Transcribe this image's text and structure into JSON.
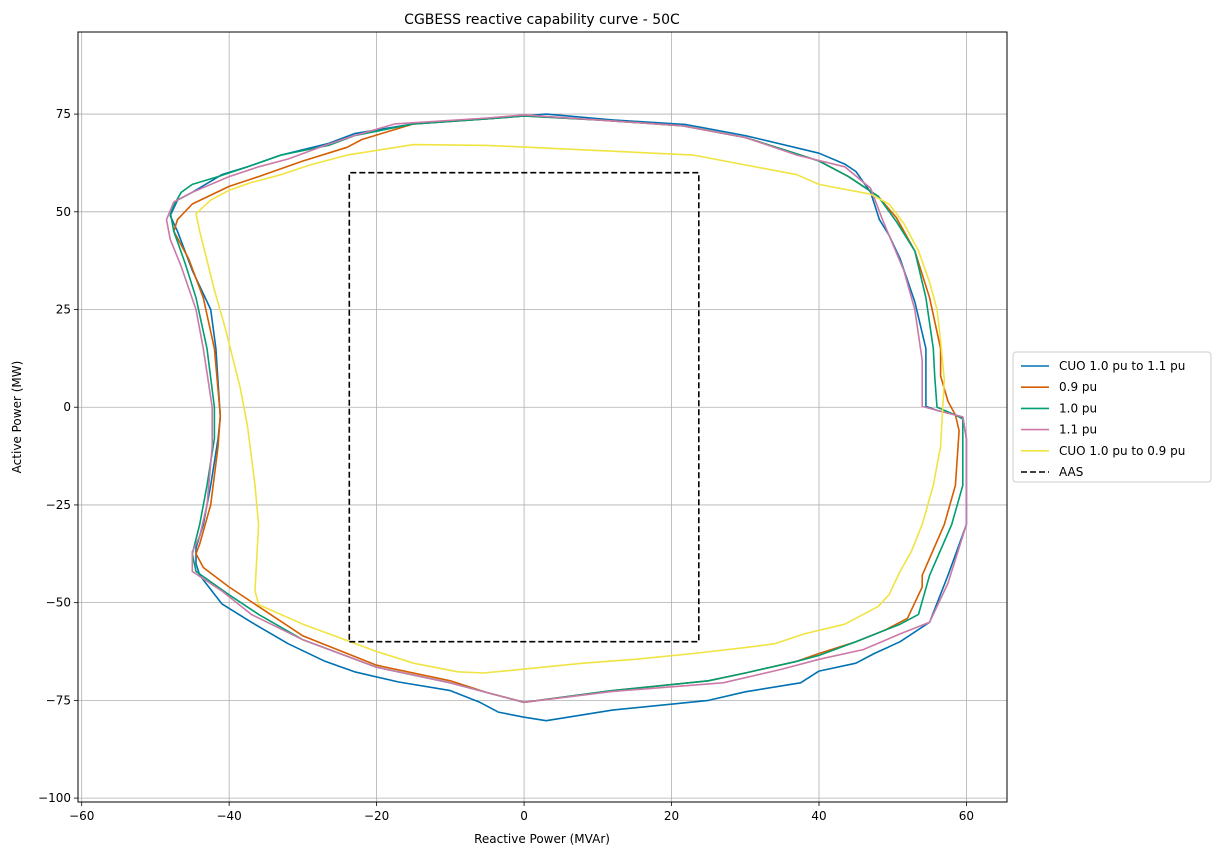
{
  "chart_data": {
    "type": "line",
    "title": "CGBESS reactive capability curve - 50C",
    "xlabel": "Reactive Power (MVAr)",
    "ylabel": "Active Power (MW)",
    "xlim": [
      -60.5,
      65.5
    ],
    "ylim": [
      -101,
      96
    ],
    "xticks": [
      -60,
      -40,
      -20,
      0,
      20,
      40,
      60
    ],
    "yticks": [
      -100,
      -75,
      -50,
      -25,
      0,
      25,
      50,
      75
    ],
    "grid": true,
    "legend_position": "center-right-outside",
    "series": [
      {
        "name": "CUO 1.0 pu to 1.1 pu",
        "color": "#0072b2",
        "dash": "solid",
        "points": [
          [
            3,
            75
          ],
          [
            12,
            73.5
          ],
          [
            22,
            72.3
          ],
          [
            30,
            69.5
          ],
          [
            40,
            65
          ],
          [
            43.5,
            62.2
          ],
          [
            45,
            60.3
          ],
          [
            47,
            55
          ],
          [
            48.2,
            48
          ],
          [
            49.5,
            44
          ],
          [
            51,
            38
          ],
          [
            53,
            27
          ],
          [
            54.5,
            15
          ],
          [
            54.5,
            0.2
          ],
          [
            56,
            -0.8
          ],
          [
            58.5,
            -2
          ],
          [
            59.5,
            -2.5
          ],
          [
            60,
            -8
          ],
          [
            60,
            -30
          ],
          [
            57.5,
            -43
          ],
          [
            55,
            -55
          ],
          [
            51,
            -60
          ],
          [
            47.5,
            -63
          ],
          [
            45,
            -65.5
          ],
          [
            40,
            -67.5
          ],
          [
            37.5,
            -70.5
          ],
          [
            30,
            -72.8
          ],
          [
            25,
            -75
          ],
          [
            12,
            -77.5
          ],
          [
            3,
            -80.2
          ],
          [
            0,
            -79.3
          ],
          [
            -3.5,
            -78
          ],
          [
            -6,
            -75.5
          ],
          [
            -10,
            -72.5
          ],
          [
            -17,
            -70.3
          ],
          [
            -23,
            -67.7
          ],
          [
            -27,
            -65
          ],
          [
            -32,
            -60.5
          ],
          [
            -37,
            -55
          ],
          [
            -41,
            -50.3
          ],
          [
            -44,
            -43
          ],
          [
            -44.5,
            -40
          ],
          [
            -44.5,
            -36
          ],
          [
            -43.5,
            -30
          ],
          [
            -42.5,
            -20
          ],
          [
            -41.5,
            -8
          ],
          [
            -41.2,
            -2.5
          ],
          [
            -41.8,
            15
          ],
          [
            -42.5,
            25
          ],
          [
            -45,
            35
          ],
          [
            -47,
            45
          ],
          [
            -48,
            49
          ],
          [
            -47,
            53
          ],
          [
            -45,
            55
          ],
          [
            -41,
            59.5
          ],
          [
            -37.5,
            61.5
          ],
          [
            -33,
            64.5
          ],
          [
            -26.5,
            67.5
          ],
          [
            -23,
            70
          ],
          [
            -15,
            72.5
          ],
          [
            -5,
            73.8
          ],
          [
            0,
            74.5
          ],
          [
            3,
            75
          ]
        ]
      },
      {
        "name": "0.9 pu",
        "color": "#d55e00",
        "dash": "solid",
        "points": [
          [
            0,
            74.5
          ],
          [
            10,
            73.5
          ],
          [
            21.5,
            72
          ],
          [
            30,
            69
          ],
          [
            37,
            64.8
          ],
          [
            40,
            63
          ],
          [
            44,
            59
          ],
          [
            48,
            54
          ],
          [
            50.5,
            48.5
          ],
          [
            53,
            40
          ],
          [
            55,
            28
          ],
          [
            56.5,
            15
          ],
          [
            56.5,
            8
          ],
          [
            57.5,
            1.5
          ],
          [
            58.5,
            -2
          ],
          [
            59,
            -6
          ],
          [
            58.5,
            -20
          ],
          [
            57,
            -30
          ],
          [
            54,
            -43
          ],
          [
            54,
            -46
          ],
          [
            52,
            -54
          ],
          [
            49,
            -57
          ],
          [
            45,
            -60
          ],
          [
            40,
            -63
          ],
          [
            37,
            -65
          ],
          [
            30,
            -68
          ],
          [
            25,
            -70
          ],
          [
            12,
            -72.5
          ],
          [
            0,
            -75.5
          ],
          [
            -5,
            -73
          ],
          [
            -10,
            -70
          ],
          [
            -20,
            -66
          ],
          [
            -30,
            -58.5
          ],
          [
            -36,
            -51
          ],
          [
            -40,
            -46
          ],
          [
            -43.5,
            -41
          ],
          [
            -44.5,
            -37.5
          ],
          [
            -44,
            -35
          ],
          [
            -42.5,
            -25
          ],
          [
            -41.5,
            -10
          ],
          [
            -41.2,
            -2
          ],
          [
            -42,
            15
          ],
          [
            -43.5,
            28
          ],
          [
            -45.5,
            38
          ],
          [
            -47.5,
            45
          ],
          [
            -47,
            48
          ],
          [
            -45,
            52
          ],
          [
            -40,
            56.5
          ],
          [
            -36,
            59
          ],
          [
            -30,
            63
          ],
          [
            -24,
            66.5
          ],
          [
            -22,
            68.5
          ],
          [
            -15,
            72.5
          ],
          [
            -5,
            73.8
          ],
          [
            0,
            74.5
          ]
        ]
      },
      {
        "name": "1.0 pu",
        "color": "#009e73",
        "dash": "solid",
        "points": [
          [
            0,
            74.5
          ],
          [
            10,
            73.5
          ],
          [
            21.5,
            72
          ],
          [
            30,
            69
          ],
          [
            37,
            64.8
          ],
          [
            40,
            63
          ],
          [
            44,
            59
          ],
          [
            48,
            54
          ],
          [
            50.5,
            47.5
          ],
          [
            53,
            40
          ],
          [
            54.5,
            28
          ],
          [
            55.5,
            15
          ],
          [
            55.7,
            8
          ],
          [
            56,
            0
          ],
          [
            58.5,
            -2
          ],
          [
            59.5,
            -3
          ],
          [
            59.5,
            -20
          ],
          [
            58,
            -30
          ],
          [
            55,
            -43
          ],
          [
            53.5,
            -53
          ],
          [
            51,
            -55.5
          ],
          [
            45,
            -60
          ],
          [
            40,
            -63.5
          ],
          [
            37,
            -65
          ],
          [
            30,
            -68
          ],
          [
            25,
            -70
          ],
          [
            12,
            -72.5
          ],
          [
            0,
            -75.5
          ],
          [
            -5,
            -73
          ],
          [
            -10,
            -70.5
          ],
          [
            -20,
            -66.5
          ],
          [
            -30,
            -59.5
          ],
          [
            -36,
            -53
          ],
          [
            -40,
            -48
          ],
          [
            -44.5,
            -42
          ],
          [
            -45,
            -37.5
          ],
          [
            -44,
            -30
          ],
          [
            -43,
            -20
          ],
          [
            -42,
            -8
          ],
          [
            -42,
            0
          ],
          [
            -43,
            15
          ],
          [
            -44.5,
            28
          ],
          [
            -46,
            37
          ],
          [
            -47.5,
            45
          ],
          [
            -48,
            50
          ],
          [
            -46.5,
            55
          ],
          [
            -45,
            57
          ],
          [
            -41.5,
            59
          ],
          [
            -37.5,
            61.5
          ],
          [
            -33,
            64.5
          ],
          [
            -26.5,
            67
          ],
          [
            -23,
            69.5
          ],
          [
            -15,
            72.5
          ],
          [
            -5,
            73.8
          ],
          [
            0,
            74.5
          ]
        ]
      },
      {
        "name": "1.1 pu",
        "color": "#cc79a7",
        "dash": "solid",
        "points": [
          [
            0,
            74.8
          ],
          [
            10,
            73.5
          ],
          [
            21.5,
            72
          ],
          [
            30,
            69
          ],
          [
            37,
            64.5
          ],
          [
            43.5,
            61.5
          ],
          [
            47,
            56
          ],
          [
            48.5,
            48.5
          ],
          [
            49.5,
            44
          ],
          [
            51.5,
            35
          ],
          [
            53,
            25
          ],
          [
            54,
            12
          ],
          [
            54,
            0.2
          ],
          [
            56,
            -0.8
          ],
          [
            58.5,
            -2
          ],
          [
            59.5,
            -2.5
          ],
          [
            60,
            -8
          ],
          [
            60,
            -30
          ],
          [
            57.5,
            -45
          ],
          [
            55,
            -55
          ],
          [
            51,
            -58
          ],
          [
            46,
            -62
          ],
          [
            40,
            -64.5
          ],
          [
            35,
            -67
          ],
          [
            27,
            -70.5
          ],
          [
            12,
            -72.7
          ],
          [
            0,
            -75.5
          ],
          [
            -5,
            -73
          ],
          [
            -10,
            -70.5
          ],
          [
            -20,
            -66.5
          ],
          [
            -30,
            -59.5
          ],
          [
            -37,
            -53
          ],
          [
            -41,
            -47
          ],
          [
            -45,
            -42
          ],
          [
            -45,
            -37
          ],
          [
            -44,
            -33
          ],
          [
            -43,
            -25
          ],
          [
            -42.3,
            -10
          ],
          [
            -42.3,
            0
          ],
          [
            -43.5,
            15
          ],
          [
            -44.5,
            25
          ],
          [
            -46.5,
            36
          ],
          [
            -48,
            43
          ],
          [
            -48.5,
            48
          ],
          [
            -47.5,
            52.5
          ],
          [
            -45,
            55
          ],
          [
            -40,
            59
          ],
          [
            -36,
            61.5
          ],
          [
            -32,
            63.5
          ],
          [
            -27,
            67
          ],
          [
            -23,
            69.5
          ],
          [
            -17.5,
            72.5
          ],
          [
            -5,
            74
          ],
          [
            0,
            74.8
          ]
        ]
      },
      {
        "name": "CUO 1.0 pu to 0.9 pu",
        "color": "#f0e442",
        "dash": "solid",
        "points": [
          [
            -15,
            67.2
          ],
          [
            -5,
            67
          ],
          [
            12,
            65.5
          ],
          [
            23,
            64.5
          ],
          [
            37,
            59.5
          ],
          [
            40,
            57
          ],
          [
            47,
            54.5
          ],
          [
            49.5,
            52
          ],
          [
            51.5,
            47
          ],
          [
            53.5,
            40
          ],
          [
            55,
            32
          ],
          [
            56,
            25
          ],
          [
            56.5,
            17
          ],
          [
            57,
            7
          ],
          [
            56.5,
            -10
          ],
          [
            55.5,
            -20
          ],
          [
            54,
            -30
          ],
          [
            52.5,
            -37
          ],
          [
            51,
            -42
          ],
          [
            49.5,
            -48
          ],
          [
            48,
            -51
          ],
          [
            43.5,
            -55.5
          ],
          [
            38,
            -58
          ],
          [
            34,
            -60.5
          ],
          [
            30,
            -61.5
          ],
          [
            23,
            -63
          ],
          [
            15,
            -64.5
          ],
          [
            8,
            -65.5
          ],
          [
            0,
            -67
          ],
          [
            -5.5,
            -68
          ],
          [
            -9,
            -67.7
          ],
          [
            -15,
            -65.5
          ],
          [
            -20,
            -62.5
          ],
          [
            -25,
            -59
          ],
          [
            -30,
            -55.5
          ],
          [
            -36,
            -50.5
          ],
          [
            -36.5,
            -47
          ],
          [
            -36,
            -30
          ],
          [
            -36.5,
            -20
          ],
          [
            -37.5,
            -5
          ],
          [
            -38.5,
            5
          ],
          [
            -40.5,
            20
          ],
          [
            -42,
            30
          ],
          [
            -44,
            45
          ],
          [
            -44.5,
            49.5
          ],
          [
            -42.5,
            53
          ],
          [
            -40,
            55.5
          ],
          [
            -37,
            57.5
          ],
          [
            -33,
            59.5
          ],
          [
            -29,
            62
          ],
          [
            -24,
            64.5
          ],
          [
            -15,
            67.2
          ]
        ]
      },
      {
        "name": "AAS",
        "color": "#000000",
        "dash": "dashed",
        "points": [
          [
            -23.7,
            -60
          ],
          [
            23.7,
            -60
          ],
          [
            23.7,
            60
          ],
          [
            -23.7,
            60
          ],
          [
            -23.7,
            -60
          ]
        ]
      }
    ]
  }
}
